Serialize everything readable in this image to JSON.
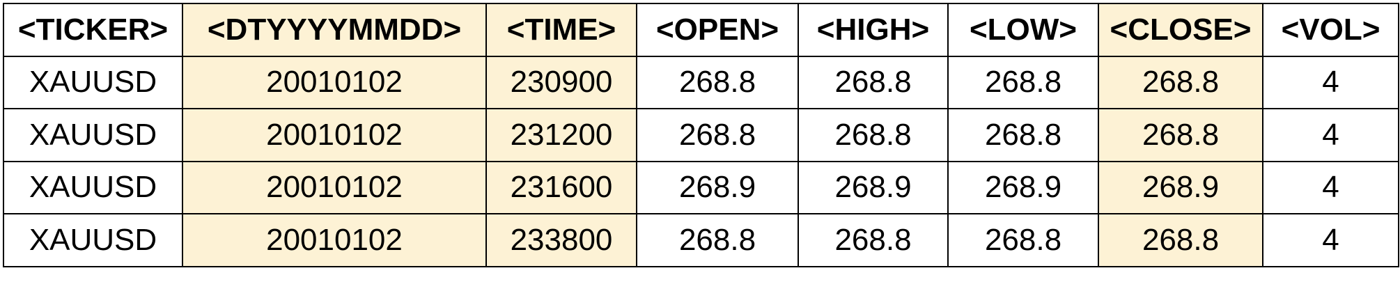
{
  "table": {
    "highlight_color": "#fdf2d5",
    "highlighted_columns": [
      "<DTYYYYMMDD>",
      "<TIME>",
      "<CLOSE>"
    ],
    "headers": [
      "<TICKER>",
      "<DTYYYYMMDD>",
      "<TIME>",
      "<OPEN>",
      "<HIGH>",
      "<LOW>",
      "<CLOSE>",
      "<VOL>"
    ],
    "rows": [
      [
        "XAUUSD",
        "20010102",
        "230900",
        "268.8",
        "268.8",
        "268.8",
        "268.8",
        "4"
      ],
      [
        "XAUUSD",
        "20010102",
        "231200",
        "268.8",
        "268.8",
        "268.8",
        "268.8",
        "4"
      ],
      [
        "XAUUSD",
        "20010102",
        "231600",
        "268.9",
        "268.9",
        "268.9",
        "268.9",
        "4"
      ],
      [
        "XAUUSD",
        "20010102",
        "233800",
        "268.8",
        "268.8",
        "268.8",
        "268.8",
        "4"
      ]
    ]
  }
}
